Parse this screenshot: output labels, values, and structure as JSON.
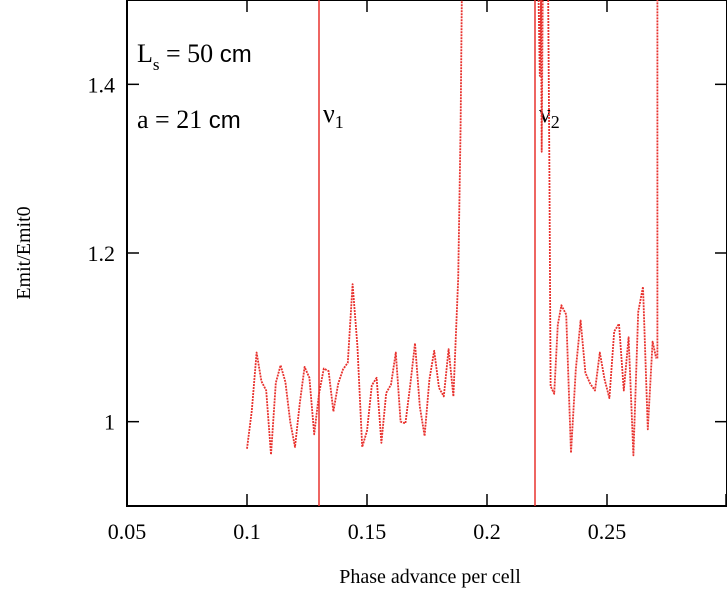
{
  "chart_data": {
    "type": "line",
    "xlabel": "Phase advance per cell",
    "ylabel": "Emit/Emit0",
    "xlim": [
      0.05,
      0.3
    ],
    "ylim": [
      0.9,
      1.5
    ],
    "xticks": [
      {
        "value": 0.05,
        "label": "0.05"
      },
      {
        "value": 0.1,
        "label": "0.1"
      },
      {
        "value": 0.15,
        "label": "0.15"
      },
      {
        "value": 0.2,
        "label": "0.2"
      },
      {
        "value": 0.25,
        "label": "0.25"
      }
    ],
    "yticks": [
      {
        "value": 1.0,
        "label": "1"
      },
      {
        "value": 1.2,
        "label": "1.2"
      },
      {
        "value": 1.4,
        "label": "1.4"
      }
    ],
    "grid": false,
    "series": [
      {
        "color": "#e8322e",
        "style": "dashed",
        "segments": [
          {
            "x": [
              0.1,
              0.102,
              0.104,
              0.106,
              0.108,
              0.11,
              0.112,
              0.114,
              0.116,
              0.118,
              0.12,
              0.122,
              0.124,
              0.126,
              0.128,
              0.13,
              0.132,
              0.134,
              0.136,
              0.138,
              0.14,
              0.142,
              0.144,
              0.146,
              0.148,
              0.15,
              0.152,
              0.154,
              0.156,
              0.158,
              0.16,
              0.162,
              0.164,
              0.166,
              0.168,
              0.17,
              0.172,
              0.174,
              0.176,
              0.178,
              0.18,
              0.182,
              0.184,
              0.186,
              0.188,
              0.189,
              0.1895
            ],
            "y": [
              0.968,
              1.013,
              1.082,
              1.048,
              1.037,
              0.961,
              1.046,
              1.067,
              1.047,
              1.0,
              0.97,
              1.022,
              1.065,
              1.052,
              0.985,
              1.033,
              1.063,
              1.06,
              1.012,
              1.045,
              1.062,
              1.07,
              1.163,
              1.09,
              0.97,
              0.989,
              1.043,
              1.052,
              0.975,
              1.034,
              1.044,
              1.082,
              1.0,
              0.998,
              1.043,
              1.093,
              1.018,
              0.983,
              1.05,
              1.084,
              1.04,
              1.03,
              1.086,
              1.03,
              1.17,
              1.35,
              1.5
            ]
          },
          {
            "x": [
              0.2215,
              0.222,
              0.2225,
              0.2228,
              0.2232
            ],
            "y": [
              1.5,
              1.41,
              1.5,
              1.32,
              1.5
            ]
          },
          {
            "x": [
              0.2255,
              0.226,
              0.2265,
              0.228,
              0.2295,
              0.231,
              0.233,
              0.235,
              0.237,
              0.239,
              0.241,
              0.243,
              0.245,
              0.247,
              0.249,
              0.251,
              0.253,
              0.255,
              0.257,
              0.259,
              0.261,
              0.263,
              0.265,
              0.267,
              0.269,
              0.2705
            ],
            "y": [
              1.5,
              1.3,
              1.042,
              1.033,
              1.115,
              1.138,
              1.127,
              0.963,
              1.062,
              1.12,
              1.058,
              1.045,
              1.037,
              1.082,
              1.05,
              1.028,
              1.107,
              1.116,
              1.037,
              1.1,
              0.96,
              1.13,
              1.16,
              0.991,
              1.095,
              1.075
            ]
          },
          {
            "x": [
              0.271,
              0.271
            ],
            "y": [
              1.075,
              1.5
            ]
          }
        ]
      }
    ],
    "vlines": [
      {
        "x": 0.13,
        "label": "ν",
        "sub": "1",
        "color": "#e8322e"
      },
      {
        "x": 0.22,
        "label": "ν",
        "sub": "2",
        "color": "#e8322e"
      }
    ],
    "annotations": [
      {
        "main": "L",
        "sub": "s",
        "rest": " = 50 ",
        "unit": "cm"
      },
      {
        "main": "a = 21 ",
        "unit": "cm"
      }
    ]
  }
}
